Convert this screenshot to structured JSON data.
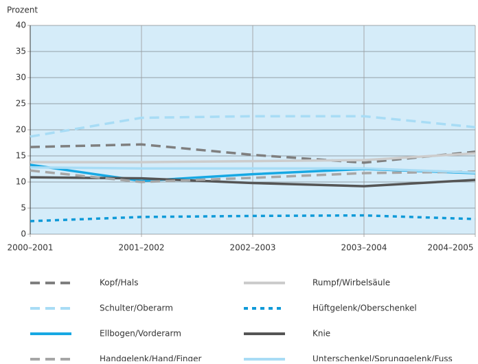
{
  "chart_data": {
    "type": "line",
    "y_label": "Prozent",
    "categories": [
      "2000–2001",
      "2001–2002",
      "2002–2003",
      "2003–2004",
      "2004–2005"
    ],
    "ylim": [
      0,
      40
    ],
    "yticks": [
      0,
      5,
      10,
      15,
      20,
      25,
      30,
      35,
      40
    ],
    "grid": true,
    "series": [
      {
        "name": "Kopf/Hals",
        "color": "#7f7f7f",
        "dash": "dashed",
        "values": [
          16.7,
          17.2,
          15.2,
          13.7,
          15.8
        ]
      },
      {
        "name": "Rumpf/Wirbelsäule",
        "color": "#cccccc",
        "dash": "solid",
        "values": [
          13.8,
          13.8,
          14.0,
          14.2,
          15.5
        ]
      },
      {
        "name": "Schulter/Oberarm",
        "color": "#a8dcf5",
        "dash": "dashed",
        "values": [
          18.7,
          22.3,
          22.6,
          22.6,
          20.5
        ]
      },
      {
        "name": "Hüftgelenk/Oberschenkel",
        "color": "#0f9ad8",
        "dash": "dotted",
        "values": [
          2.5,
          3.3,
          3.5,
          3.6,
          2.9
        ]
      },
      {
        "name": "Ellbogen/Vorderarm",
        "color": "#17a8e3",
        "dash": "solid",
        "values": [
          13.3,
          10.2,
          11.5,
          12.5,
          11.7
        ]
      },
      {
        "name": "Knie",
        "color": "#555555",
        "dash": "solid",
        "values": [
          10.9,
          10.7,
          9.8,
          9.2,
          10.4
        ]
      },
      {
        "name": "Handgelenk/Hand/Finger",
        "color": "#a6a6a6",
        "dash": "dashed",
        "values": [
          12.2,
          10.0,
          10.8,
          11.7,
          12.0
        ]
      },
      {
        "name": "Unterschenkel/Sprunggelenk/Fuss",
        "color": "#a8dcf5",
        "dash": "solid",
        "values": [
          12.8,
          12.6,
          12.6,
          12.6,
          11.8
        ]
      }
    ]
  }
}
